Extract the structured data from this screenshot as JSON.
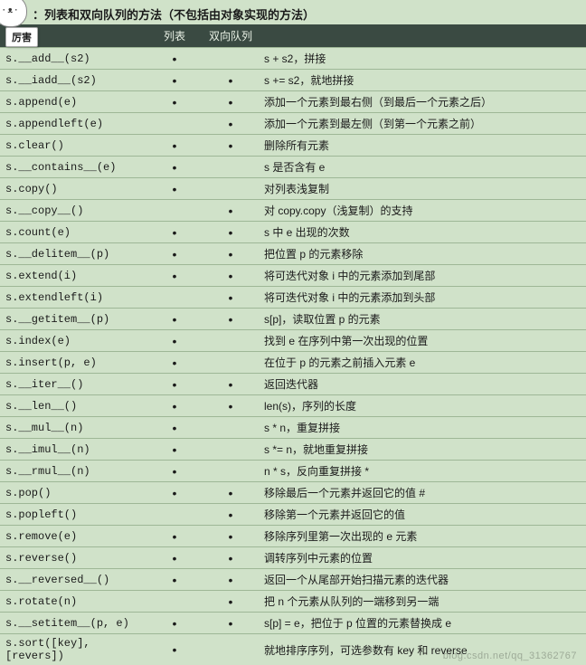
{
  "title_prefix": "：",
  "title": "列表和双向队列的方法（不包括由对象实现的方法）",
  "tooltip": "厉害",
  "columns": {
    "method": "",
    "list": "列表",
    "deque": "双向队列",
    "desc": ""
  },
  "dot": "•",
  "rows": [
    {
      "m": "s.__add__(s2)",
      "l": true,
      "d": false,
      "t": "s + s2，拼接"
    },
    {
      "m": "s.__iadd__(s2)",
      "l": true,
      "d": true,
      "t": "s += s2，就地拼接"
    },
    {
      "m": "s.append(e)",
      "l": true,
      "d": true,
      "t": "添加一个元素到最右侧（到最后一个元素之后）"
    },
    {
      "m": "s.appendleft(e)",
      "l": false,
      "d": true,
      "t": "添加一个元素到最左侧（到第一个元素之前）"
    },
    {
      "m": "s.clear()",
      "l": true,
      "d": true,
      "t": "删除所有元素"
    },
    {
      "m": "s.__contains__(e)",
      "l": true,
      "d": false,
      "t": "s 是否含有 e"
    },
    {
      "m": "s.copy()",
      "l": true,
      "d": false,
      "t": "对列表浅复制"
    },
    {
      "m": "s.__copy__()",
      "l": false,
      "d": true,
      "t": "对 copy.copy（浅复制）的支持"
    },
    {
      "m": "s.count(e)",
      "l": true,
      "d": true,
      "t": "s 中 e 出现的次数"
    },
    {
      "m": "s.__delitem__(p)",
      "l": true,
      "d": true,
      "t": "把位置 p 的元素移除"
    },
    {
      "m": "s.extend(i)",
      "l": true,
      "d": true,
      "t": "将可迭代对象 i 中的元素添加到尾部"
    },
    {
      "m": "s.extendleft(i)",
      "l": false,
      "d": true,
      "t": "将可迭代对象 i 中的元素添加到头部"
    },
    {
      "m": "s.__getitem__(p)",
      "l": true,
      "d": true,
      "t": "s[p]，读取位置 p 的元素"
    },
    {
      "m": "s.index(e)",
      "l": true,
      "d": false,
      "t": "找到 e 在序列中第一次出现的位置"
    },
    {
      "m": "s.insert(p, e)",
      "l": true,
      "d": false,
      "t": "在位于 p 的元素之前插入元素 e"
    },
    {
      "m": "s.__iter__()",
      "l": true,
      "d": true,
      "t": "返回迭代器"
    },
    {
      "m": "s.__len__()",
      "l": true,
      "d": true,
      "t": "len(s)，序列的长度"
    },
    {
      "m": "s.__mul__(n)",
      "l": true,
      "d": false,
      "t": "s * n，重复拼接"
    },
    {
      "m": "s.__imul__(n)",
      "l": true,
      "d": false,
      "t": "s *= n，就地重复拼接"
    },
    {
      "m": "s.__rmul__(n)",
      "l": true,
      "d": false,
      "t": "n * s，反向重复拼接 *"
    },
    {
      "m": "s.pop()",
      "l": true,
      "d": true,
      "t": "移除最后一个元素并返回它的值 #"
    },
    {
      "m": "s.popleft()",
      "l": false,
      "d": true,
      "t": "移除第一个元素并返回它的值"
    },
    {
      "m": "s.remove(e)",
      "l": true,
      "d": true,
      "t": "移除序列里第一次出现的 e 元素"
    },
    {
      "m": "s.reverse()",
      "l": true,
      "d": true,
      "t": "调转序列中元素的位置"
    },
    {
      "m": "s.__reversed__()",
      "l": true,
      "d": true,
      "t": "返回一个从尾部开始扫描元素的迭代器"
    },
    {
      "m": "s.rotate(n)",
      "l": false,
      "d": true,
      "t": "把 n 个元素从队列的一端移到另一端"
    },
    {
      "m": "s.__setitem__(p, e)",
      "l": true,
      "d": true,
      "t": "s[p] = e，把位于 p 位置的元素替换成 e"
    },
    {
      "m": "s.sort([key], [revers])",
      "l": true,
      "d": false,
      "t": "就地排序序列，可选参数有 key 和 reverse"
    }
  ],
  "watermark": "blog.csdn.net/qq_31362767",
  "colors": {
    "page_bg": "#d0e2c9",
    "header_bg": "#3a4a42",
    "header_text": "#e8f0e4",
    "row_border": "#9eb796"
  }
}
